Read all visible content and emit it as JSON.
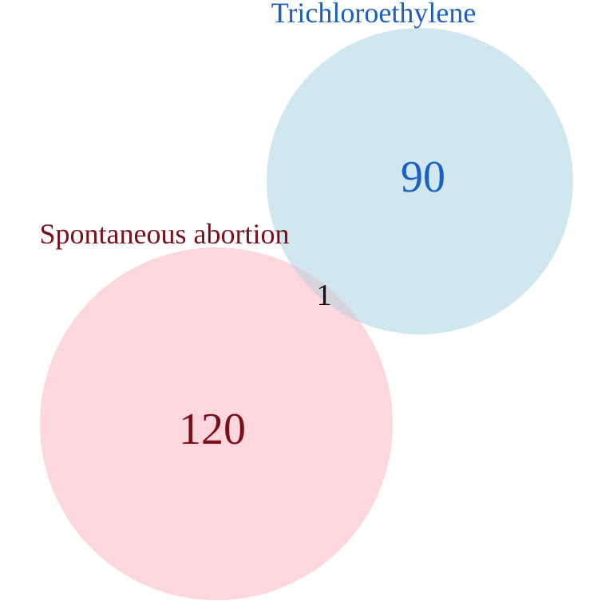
{
  "diagram": {
    "type": "venn",
    "sets": [
      {
        "id": "spontaneous_abortion",
        "label": "Spontaneous abortion",
        "only_count": "120",
        "fill_color": "#fcd5db",
        "text_color": "#7a0f1a"
      },
      {
        "id": "trichloroethylene",
        "label": "Trichloroethylene",
        "only_count": "90",
        "fill_color": "#cfe6ef",
        "text_color": "#1a5fc2"
      }
    ],
    "intersection": {
      "count": "1",
      "text_color": "#111111"
    }
  }
}
